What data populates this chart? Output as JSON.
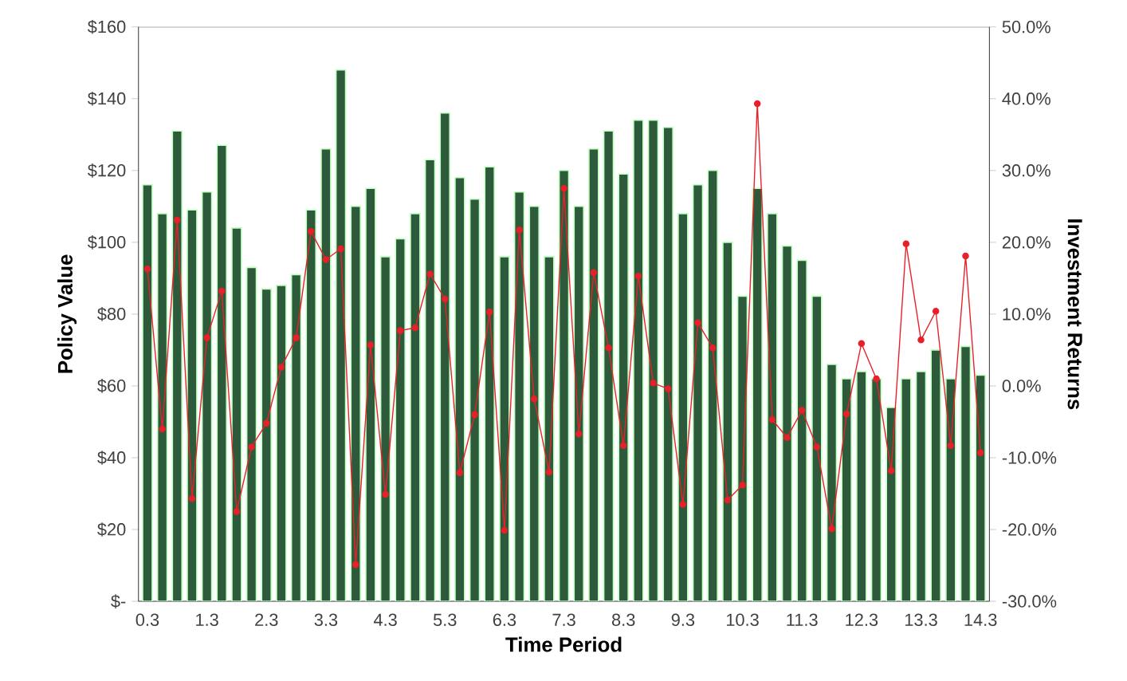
{
  "chart_data": {
    "type": "bar",
    "xlabel": "Time Period",
    "ylabel": "Policy Value",
    "y2label": "Investment Returns",
    "categories": [
      "0.3",
      null,
      null,
      null,
      "1.3",
      null,
      null,
      null,
      "2.3",
      null,
      null,
      null,
      "3.3",
      null,
      null,
      null,
      "4.3",
      null,
      null,
      null,
      "5.3",
      null,
      null,
      null,
      "6.3",
      null,
      null,
      null,
      "7.3",
      null,
      null,
      null,
      "8.3",
      null,
      null,
      null,
      "9.3",
      null,
      null,
      null,
      "10.3",
      null,
      null,
      null,
      "11.3",
      null,
      null,
      null,
      "12.3",
      null,
      null,
      null,
      "13.3",
      null,
      null,
      null,
      "14.3"
    ],
    "series": [
      {
        "color": "#2e5a3c",
        "values": [
          116,
          108,
          131,
          109,
          114,
          127,
          104,
          93,
          87,
          88,
          91,
          109,
          126,
          148,
          110,
          115,
          96,
          101,
          108,
          123,
          136,
          118,
          112,
          121,
          96,
          114,
          110,
          96,
          120,
          110,
          126,
          131,
          119,
          134,
          134,
          132,
          108,
          116,
          120,
          100,
          85,
          115,
          108,
          99,
          95,
          85,
          66,
          62,
          64,
          62,
          54,
          62,
          64,
          70,
          62,
          71,
          63
        ]
      },
      {
        "type": "line",
        "axis": "y2",
        "color": "#e8202a",
        "values": [
          16.3,
          -6.0,
          23.1,
          -15.7,
          6.7,
          13.2,
          -17.5,
          -8.5,
          -5.2,
          2.6,
          6.7,
          21.5,
          17.6,
          19.1,
          -24.9,
          5.7,
          -15.1,
          7.7,
          8.1,
          15.6,
          12.1,
          -12.1,
          -4.0,
          10.3,
          -20.1,
          21.7,
          -1.8,
          -12.0,
          27.5,
          -6.7,
          15.8,
          5.3,
          -8.3,
          15.3,
          0.4,
          -0.4,
          -16.5,
          8.8,
          5.3,
          -15.9,
          -13.8,
          39.3,
          -4.7,
          -7.2,
          -3.4,
          -8.5,
          -19.9,
          -3.9,
          5.9,
          1.0,
          -11.8,
          19.8,
          6.4,
          10.4,
          -8.3,
          18.1,
          -9.3
        ]
      }
    ],
    "marker": "circle",
    "ylim": [
      0,
      160
    ],
    "yticks": [
      {
        "value": 0,
        "label": "$-"
      },
      {
        "value": 20,
        "label": "$20"
      },
      {
        "value": 40,
        "label": "$40"
      },
      {
        "value": 60,
        "label": "$60"
      },
      {
        "value": 80,
        "label": "$80"
      },
      {
        "value": 100,
        "label": "$100"
      },
      {
        "value": 120,
        "label": "$120"
      },
      {
        "value": 140,
        "label": "$140"
      },
      {
        "value": 160,
        "label": "$160"
      }
    ],
    "y2lim": [
      -30,
      50
    ],
    "y2ticks": [
      {
        "value": -30,
        "label": "-30.0%"
      },
      {
        "value": -20,
        "label": "-20.0%"
      },
      {
        "value": -10,
        "label": "-10.0%"
      },
      {
        "value": 0,
        "label": "0.0%"
      },
      {
        "value": 10,
        "label": "10.0%"
      },
      {
        "value": 20,
        "label": "20.0%"
      },
      {
        "value": 30,
        "label": "30.0%"
      },
      {
        "value": 40,
        "label": "40.0%"
      },
      {
        "value": 50,
        "label": "50.0%"
      }
    ],
    "grid": false
  }
}
